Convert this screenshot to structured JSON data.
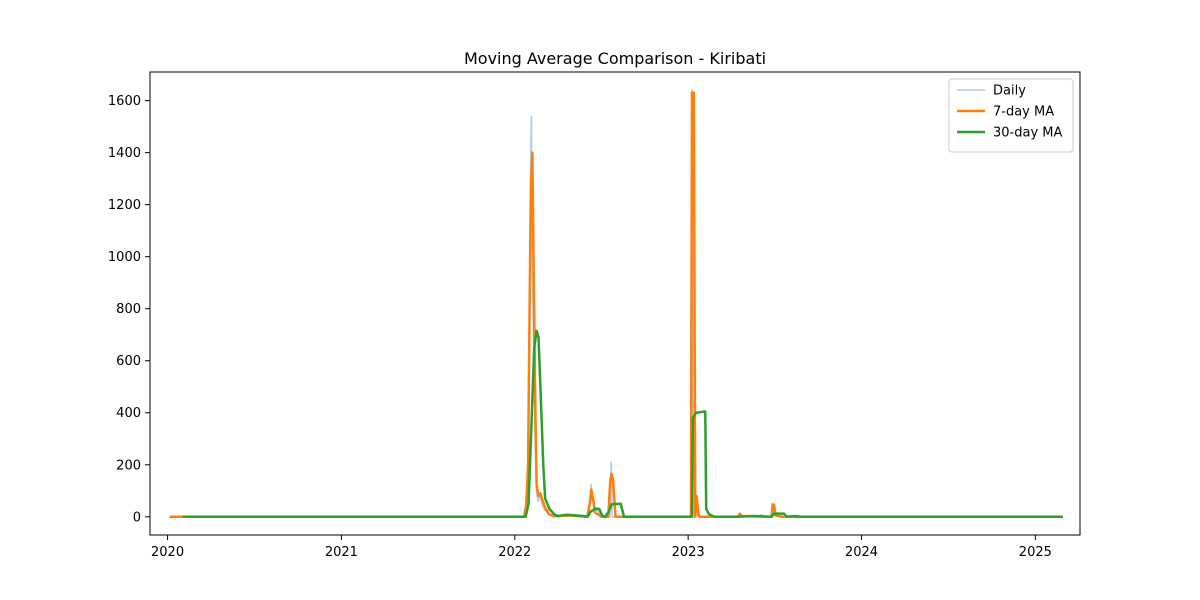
{
  "chart_data": {
    "type": "line",
    "title": "Moving Average Comparison - Kiribati",
    "xlabel": "",
    "ylabel": "",
    "x_range": [
      "2019-11-25",
      "2025-04-05"
    ],
    "ylim": [
      -70,
      1710
    ],
    "x_ticks": [
      {
        "date": "2020-01-01",
        "label": "2020"
      },
      {
        "date": "2021-01-01",
        "label": "2021"
      },
      {
        "date": "2022-01-01",
        "label": "2022"
      },
      {
        "date": "2023-01-01",
        "label": "2023"
      },
      {
        "date": "2024-01-01",
        "label": "2024"
      },
      {
        "date": "2025-01-01",
        "label": "2025"
      }
    ],
    "y_ticks": [
      0,
      200,
      400,
      600,
      800,
      1000,
      1200,
      1400,
      1600
    ],
    "grid": false,
    "legend_position": "top-right",
    "series": [
      {
        "name": "Daily",
        "color": "#aecde6",
        "width": 1.6,
        "points": [
          [
            "2020-01-05",
            0
          ],
          [
            "2022-01-18",
            0
          ],
          [
            "2022-01-23",
            20
          ],
          [
            "2022-01-28",
            150
          ],
          [
            "2022-02-01",
            800
          ],
          [
            "2022-02-03",
            1300
          ],
          [
            "2022-02-05",
            1540
          ],
          [
            "2022-02-06",
            1100
          ],
          [
            "2022-02-09",
            700
          ],
          [
            "2022-02-13",
            300
          ],
          [
            "2022-02-16",
            90
          ],
          [
            "2022-02-19",
            60
          ],
          [
            "2022-02-23",
            80
          ],
          [
            "2022-02-27",
            50
          ],
          [
            "2022-03-05",
            25
          ],
          [
            "2022-03-15",
            8
          ],
          [
            "2022-04-15",
            5
          ],
          [
            "2022-06-01",
            0
          ],
          [
            "2022-06-08",
            60
          ],
          [
            "2022-06-11",
            125
          ],
          [
            "2022-06-14",
            60
          ],
          [
            "2022-06-18",
            20
          ],
          [
            "2022-06-24",
            25
          ],
          [
            "2022-07-01",
            0
          ],
          [
            "2022-07-20",
            0
          ],
          [
            "2022-07-23",
            210
          ],
          [
            "2022-07-25",
            0
          ],
          [
            "2022-08-06",
            0
          ],
          [
            "2023-01-07",
            0
          ],
          [
            "2023-01-09",
            1640
          ],
          [
            "2023-01-11",
            400
          ],
          [
            "2023-01-13",
            0
          ],
          [
            "2023-01-16",
            0
          ],
          [
            "2023-01-19",
            30
          ],
          [
            "2023-01-22",
            0
          ],
          [
            "2023-04-15",
            0
          ],
          [
            "2023-04-20",
            12
          ],
          [
            "2023-04-25",
            0
          ],
          [
            "2023-06-01",
            0
          ],
          [
            "2023-06-04",
            8
          ],
          [
            "2023-06-08",
            0
          ],
          [
            "2023-06-24",
            0
          ],
          [
            "2023-06-27",
            50
          ],
          [
            "2023-07-01",
            5
          ],
          [
            "2023-07-15",
            0
          ],
          [
            "2025-02-28",
            0
          ]
        ]
      },
      {
        "name": "7-day MA",
        "color": "#ff7f0e",
        "width": 2.5,
        "points": [
          [
            "2020-01-05",
            0
          ],
          [
            "2022-01-20",
            0
          ],
          [
            "2022-01-25",
            40
          ],
          [
            "2022-01-29",
            200
          ],
          [
            "2022-02-02",
            950
          ],
          [
            "2022-02-04",
            1260
          ],
          [
            "2022-02-07",
            1400
          ],
          [
            "2022-02-10",
            900
          ],
          [
            "2022-02-13",
            450
          ],
          [
            "2022-02-16",
            120
          ],
          [
            "2022-02-20",
            80
          ],
          [
            "2022-02-24",
            90
          ],
          [
            "2022-03-01",
            60
          ],
          [
            "2022-03-06",
            35
          ],
          [
            "2022-03-14",
            10
          ],
          [
            "2022-03-25",
            3
          ],
          [
            "2022-04-30",
            5
          ],
          [
            "2022-06-03",
            0
          ],
          [
            "2022-06-08",
            50
          ],
          [
            "2022-06-11",
            105
          ],
          [
            "2022-06-15",
            70
          ],
          [
            "2022-06-19",
            15
          ],
          [
            "2022-06-25",
            10
          ],
          [
            "2022-07-02",
            0
          ],
          [
            "2022-07-17",
            0
          ],
          [
            "2022-07-21",
            140
          ],
          [
            "2022-07-24",
            165
          ],
          [
            "2022-07-27",
            140
          ],
          [
            "2022-08-01",
            0
          ],
          [
            "2023-01-07",
            0
          ],
          [
            "2023-01-09",
            1630
          ],
          [
            "2023-01-13",
            1630
          ],
          [
            "2023-01-16",
            0
          ],
          [
            "2023-01-19",
            80
          ],
          [
            "2023-01-23",
            5
          ],
          [
            "2023-01-27",
            0
          ],
          [
            "2023-04-16",
            0
          ],
          [
            "2023-04-20",
            12
          ],
          [
            "2023-04-24",
            3
          ],
          [
            "2023-06-26",
            0
          ],
          [
            "2023-06-28",
            48
          ],
          [
            "2023-07-01",
            45
          ],
          [
            "2023-07-04",
            5
          ],
          [
            "2023-07-18",
            0
          ],
          [
            "2025-02-28",
            0
          ]
        ]
      },
      {
        "name": "30-day MA",
        "color": "#2ca02c",
        "width": 2.5,
        "points": [
          [
            "2020-02-02",
            0
          ],
          [
            "2022-01-24",
            0
          ],
          [
            "2022-01-30",
            50
          ],
          [
            "2022-02-05",
            350
          ],
          [
            "2022-02-11",
            650
          ],
          [
            "2022-02-16",
            715
          ],
          [
            "2022-02-20",
            690
          ],
          [
            "2022-02-25",
            450
          ],
          [
            "2022-03-02",
            200
          ],
          [
            "2022-03-06",
            70
          ],
          [
            "2022-03-15",
            30
          ],
          [
            "2022-03-25",
            10
          ],
          [
            "2022-04-01",
            3
          ],
          [
            "2022-04-20",
            8
          ],
          [
            "2022-05-25",
            3
          ],
          [
            "2022-06-03",
            0
          ],
          [
            "2022-06-10",
            20
          ],
          [
            "2022-06-20",
            32
          ],
          [
            "2022-06-28",
            30
          ],
          [
            "2022-07-04",
            5
          ],
          [
            "2022-07-10",
            0
          ],
          [
            "2022-07-18",
            20
          ],
          [
            "2022-07-24",
            48
          ],
          [
            "2022-08-12",
            50
          ],
          [
            "2022-08-19",
            0
          ],
          [
            "2023-01-09",
            0
          ],
          [
            "2023-01-11",
            380
          ],
          [
            "2023-01-18",
            400
          ],
          [
            "2023-02-06",
            405
          ],
          [
            "2023-02-08",
            30
          ],
          [
            "2023-02-14",
            10
          ],
          [
            "2023-02-25",
            0
          ],
          [
            "2023-04-15",
            0
          ],
          [
            "2023-05-20",
            3
          ],
          [
            "2023-06-25",
            0
          ],
          [
            "2023-07-01",
            12
          ],
          [
            "2023-07-22",
            12
          ],
          [
            "2023-07-28",
            0
          ],
          [
            "2023-08-12",
            3
          ],
          [
            "2023-08-28",
            0
          ],
          [
            "2025-02-28",
            0
          ]
        ]
      }
    ]
  }
}
